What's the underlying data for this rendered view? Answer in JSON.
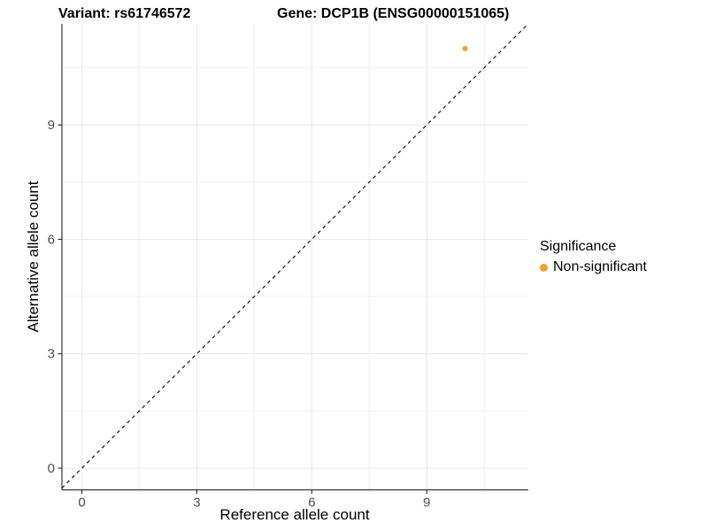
{
  "header": {
    "variant_title": "Variant: rs61746572",
    "gene_title": "Gene: DCP1B (ENSG00000151065)"
  },
  "chart_data": {
    "type": "scatter",
    "xlabel": "Reference allele count",
    "ylabel": "Alternative allele count",
    "x_ticks": [
      0,
      3,
      6,
      9
    ],
    "y_ticks": [
      0,
      3,
      6,
      9
    ],
    "xlim": [
      -0.52,
      11.65
    ],
    "ylim": [
      -0.568,
      11.648
    ],
    "minor_grid_step": 1.5,
    "grid": "major+minor on white, very light gray",
    "points": [
      {
        "x": 10,
        "y": 11,
        "significance": "Non-significant"
      }
    ],
    "reference_line": {
      "type": "identity y=x",
      "slope": 1,
      "intercept": 0,
      "style": "dashed",
      "color": "#000000"
    },
    "legend": {
      "position": "right",
      "title": "Significance",
      "items": [
        {
          "label": "Non-significant",
          "color": "#F7A028"
        }
      ]
    }
  },
  "colors": {
    "point": "#F7A028",
    "axis_line": "#333333",
    "tick_label": "#4D4D4D",
    "grid_major": "#E8E8E8",
    "grid_minor": "#F2F2F2",
    "background": "#FFFFFF"
  }
}
